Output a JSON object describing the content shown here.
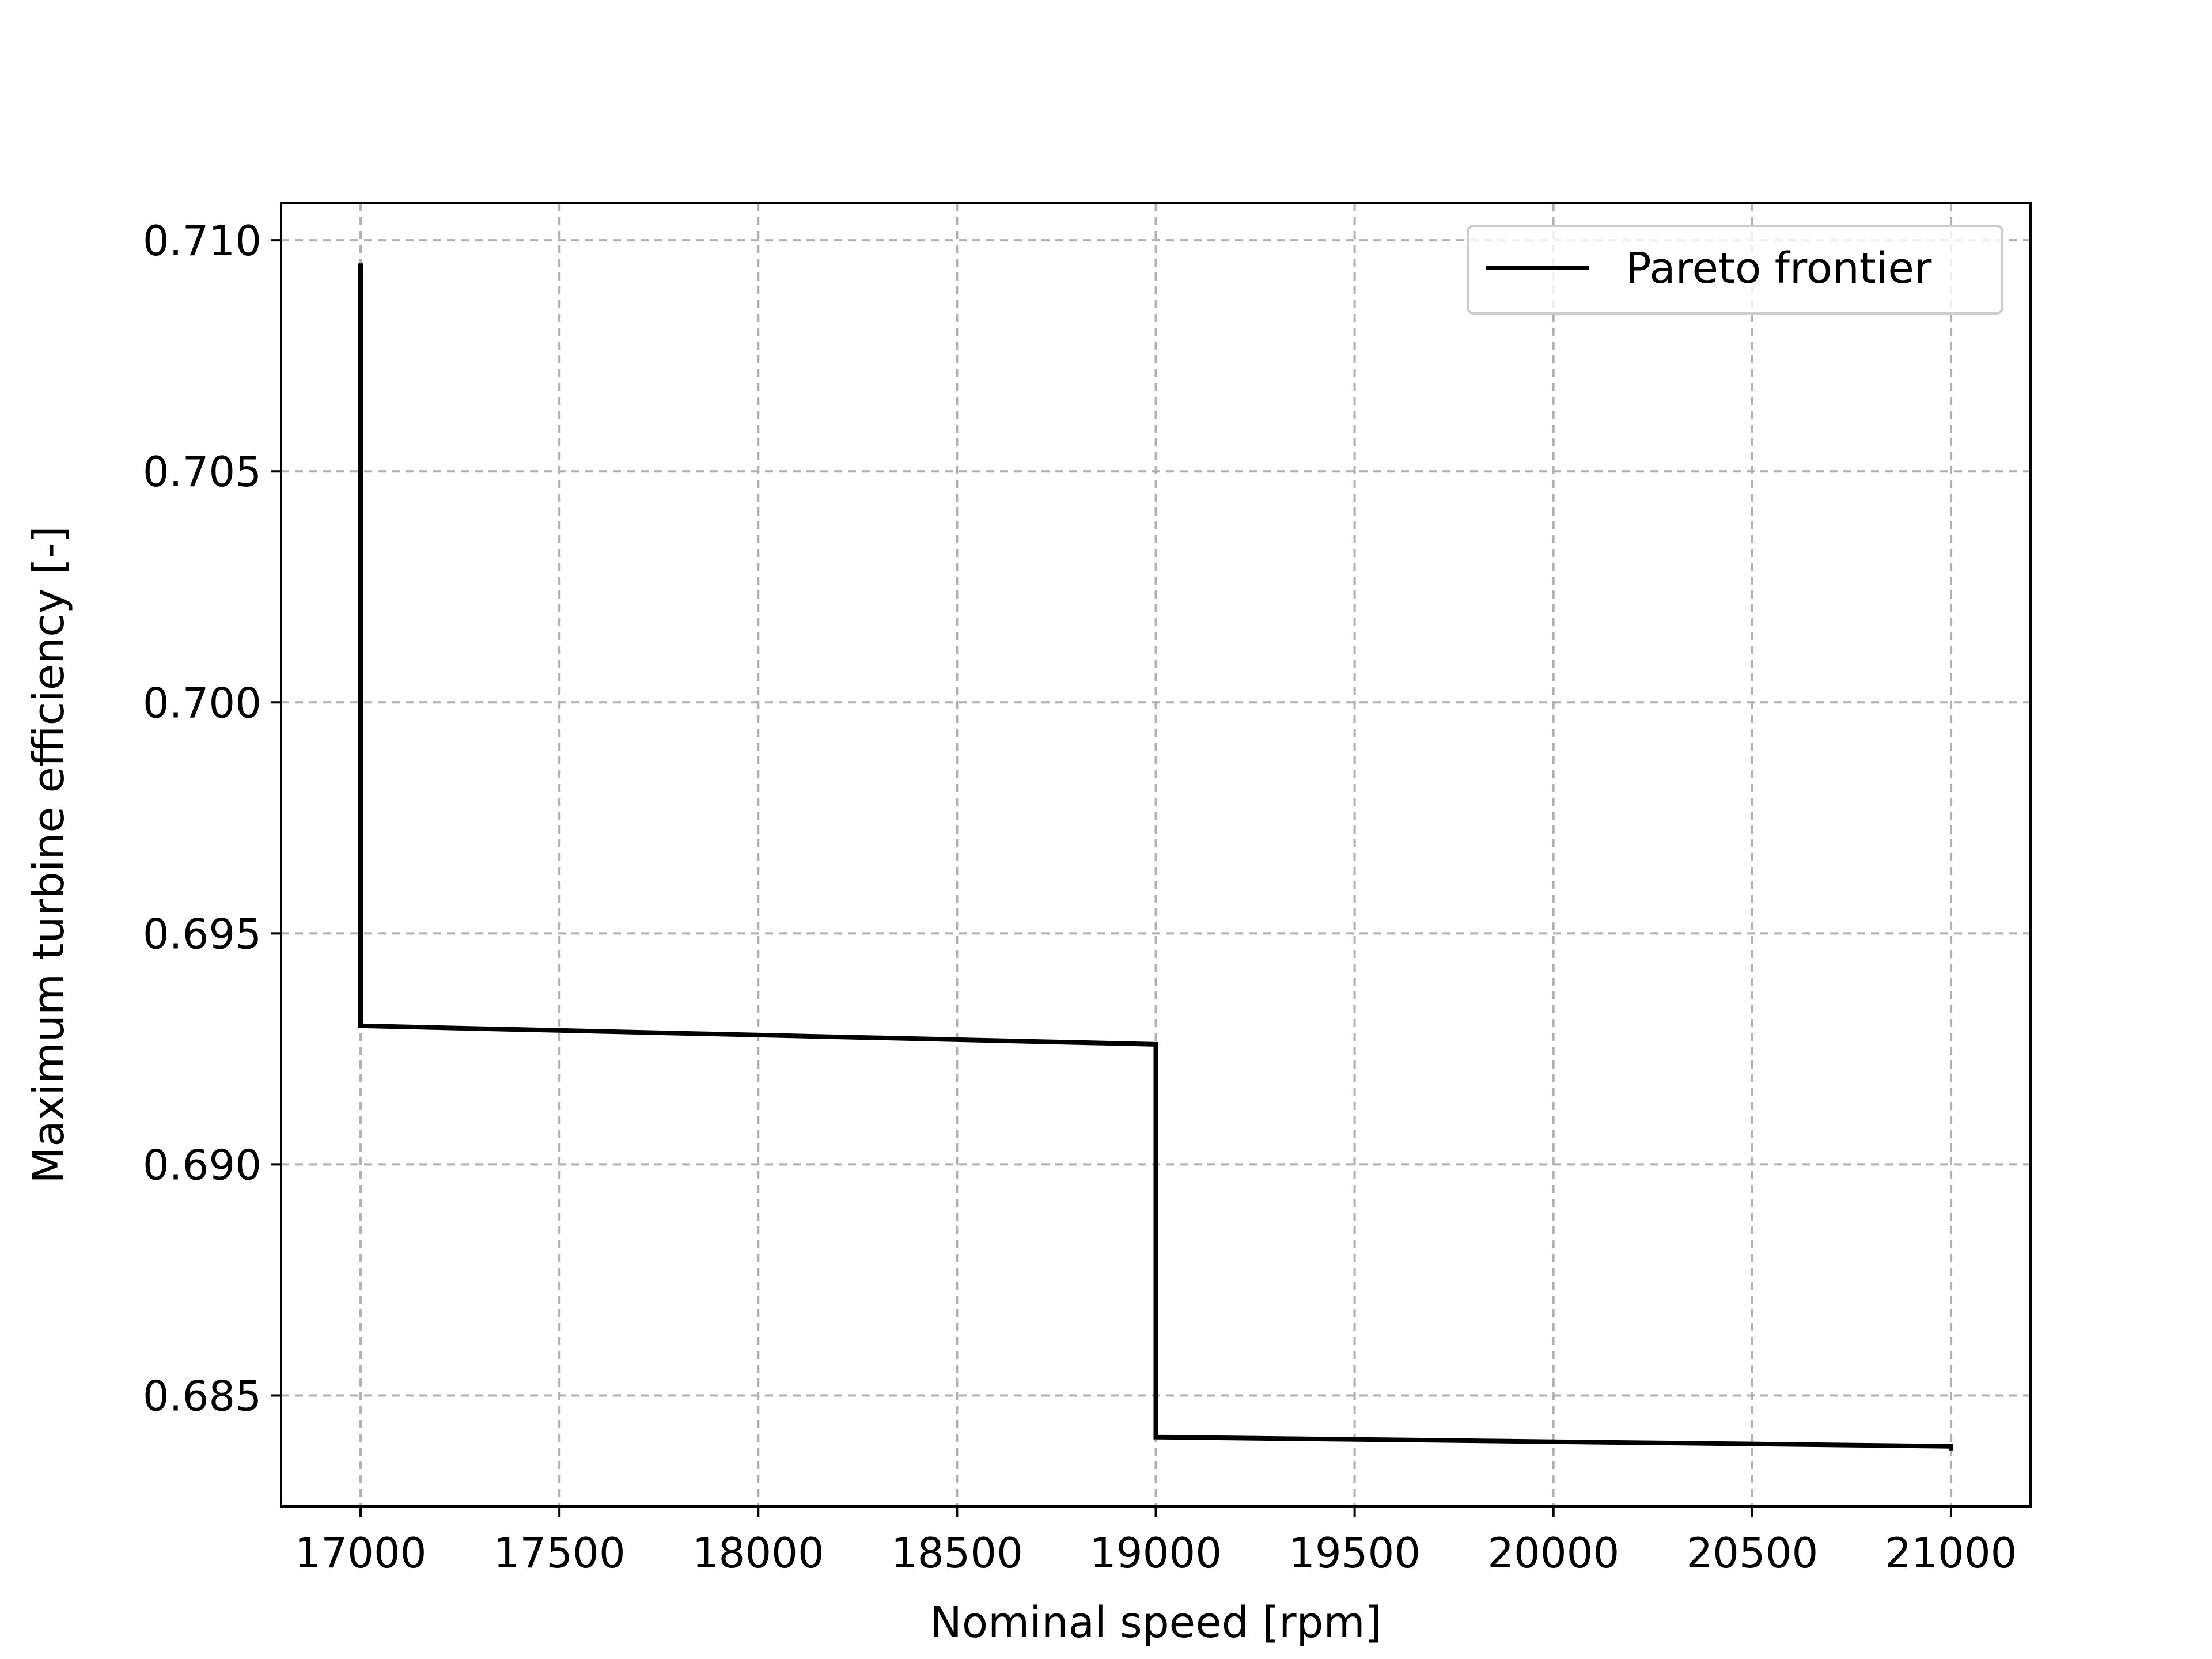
{
  "chart_data": {
    "type": "line",
    "title": "",
    "xlabel": "Nominal speed [rpm]",
    "ylabel": "Maximum turbine efficiency [-]",
    "xlim": [
      16800,
      21200
    ],
    "ylim": [
      0.6826,
      0.7108
    ],
    "xticks": [
      17000,
      17500,
      18000,
      18500,
      19000,
      19500,
      20000,
      20500,
      21000
    ],
    "xtick_labels": [
      "17000",
      "17500",
      "18000",
      "18500",
      "19000",
      "19500",
      "20000",
      "20500",
      "21000"
    ],
    "yticks": [
      0.685,
      0.69,
      0.695,
      0.7,
      0.705,
      0.71
    ],
    "ytick_labels": [
      "0.685",
      "0.690",
      "0.695",
      "0.700",
      "0.705",
      "0.710"
    ],
    "grid": true,
    "legend_position": "top-right",
    "series": [
      {
        "name": "Pareto frontier",
        "color": "#000000",
        "x": [
          17000,
          17000,
          19000,
          19000,
          21000,
          21000
        ],
        "y": [
          0.7095,
          0.693,
          0.6926,
          0.6841,
          0.6839,
          0.6838
        ]
      }
    ]
  }
}
